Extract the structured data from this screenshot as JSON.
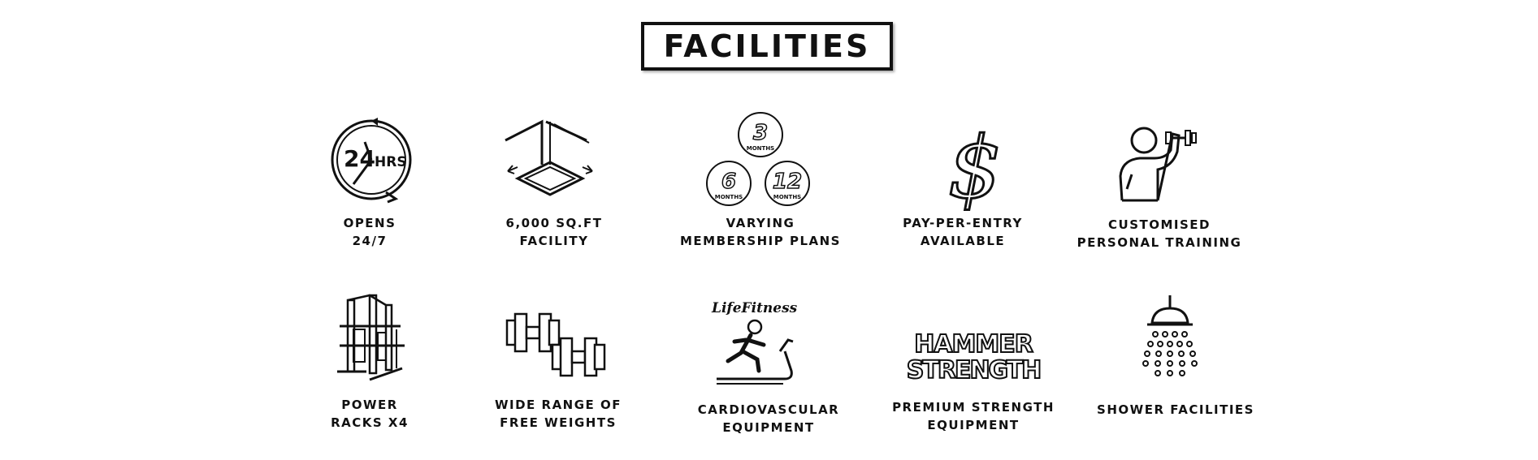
{
  "title": "FACILITIES",
  "icon_text": {
    "hours_number": "24",
    "hours_unit": "HRS",
    "plan_3": "3",
    "plan_6": "6",
    "plan_12": "12",
    "months": "MONTHS",
    "dollar": "$",
    "lifefitness_logo": "LifeFitness",
    "hammer_logo_top": "HAMMER",
    "hammer_logo_bottom": "STRENGTH"
  },
  "facilities": [
    {
      "lines": [
        "OPENS",
        "24/7"
      ],
      "icon": "clock-24hrs-icon"
    },
    {
      "lines": [
        "6,000 SQ.FT",
        "FACILITY"
      ],
      "icon": "floor-area-icon"
    },
    {
      "lines": [
        "VARYING",
        "MEMBERSHIP PLANS"
      ],
      "icon": "membership-months-icon"
    },
    {
      "lines": [
        "PAY-PER-ENTRY",
        "AVAILABLE"
      ],
      "icon": "dollar-icon"
    },
    {
      "lines": [
        "CUSTOMISED",
        "PERSONAL TRAINING"
      ],
      "icon": "personal-trainer-icon"
    },
    {
      "lines": [
        "POWER",
        "RACKS X4"
      ],
      "icon": "power-rack-icon"
    },
    {
      "lines": [
        "WIDE RANGE OF",
        "FREE WEIGHTS"
      ],
      "icon": "dumbbells-icon"
    },
    {
      "lines": [
        "CARDIOVASCULAR",
        "EQUIPMENT"
      ],
      "icon": "treadmill-icon"
    },
    {
      "lines": [
        "PREMIUM STRENGTH",
        "EQUIPMENT"
      ],
      "icon": "hammer-strength-logo-icon"
    },
    {
      "lines": [
        "SHOWER FACILITIES"
      ],
      "icon": "shower-icon"
    }
  ]
}
